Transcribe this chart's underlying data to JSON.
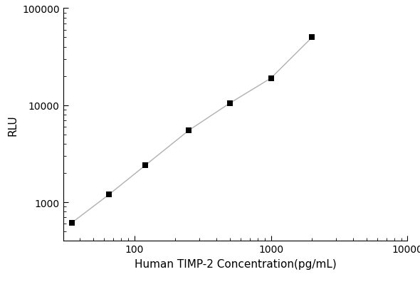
{
  "x_values": [
    35,
    65,
    120,
    250,
    500,
    1000,
    2000
  ],
  "y_values": [
    620,
    1200,
    2400,
    5500,
    10500,
    19000,
    50000
  ],
  "xlabel": "Human TIMP-2 Concentration(pg/mL)",
  "ylabel": "RLU",
  "xlim": [
    30,
    10000
  ],
  "ylim": [
    400,
    100000
  ],
  "x_ticks": [
    100,
    1000,
    10000
  ],
  "y_ticks": [
    1000,
    10000,
    100000
  ],
  "marker_color": "black",
  "line_color": "#b0b0b0",
  "marker": "s",
  "marker_size": 6,
  "line_width": 1.0,
  "background_color": "#ffffff",
  "font_size_label": 11,
  "font_size_tick": 10
}
